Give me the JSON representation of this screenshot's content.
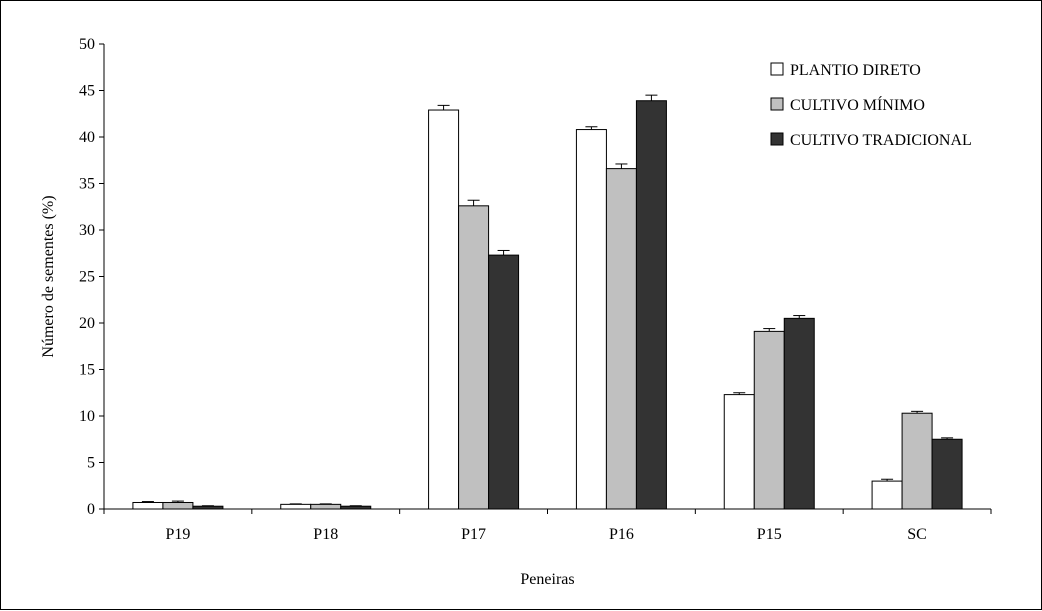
{
  "chart_data": {
    "type": "bar",
    "categories": [
      "P19",
      "P18",
      "P17",
      "P16",
      "P15",
      "SC"
    ],
    "series": [
      {
        "name": "PLANTIO DIRETO",
        "values": [
          0.7,
          0.5,
          42.9,
          40.8,
          12.3,
          3.0
        ],
        "errors": [
          0.1,
          0.05,
          0.5,
          0.3,
          0.2,
          0.2
        ],
        "color": "#ffffff"
      },
      {
        "name": "CULTIVO MÍNIMO",
        "values": [
          0.7,
          0.5,
          32.6,
          36.6,
          19.1,
          10.3
        ],
        "errors": [
          0.15,
          0.05,
          0.6,
          0.5,
          0.3,
          0.2
        ],
        "color": "#c0c0c0"
      },
      {
        "name": "CULTIVO TRADICIONAL",
        "values": [
          0.3,
          0.3,
          27.3,
          43.9,
          20.5,
          7.5
        ],
        "errors": [
          0.05,
          0.05,
          0.5,
          0.6,
          0.3,
          0.15
        ],
        "color": "#333333"
      }
    ],
    "title": "",
    "xlabel": "Peneiras",
    "ylabel": "Número de sementes (%)",
    "ylim": [
      0,
      50
    ],
    "yticks": [
      0,
      5,
      10,
      15,
      20,
      25,
      30,
      35,
      40,
      45,
      50
    ],
    "grid": false,
    "legend_position": "top-right"
  }
}
